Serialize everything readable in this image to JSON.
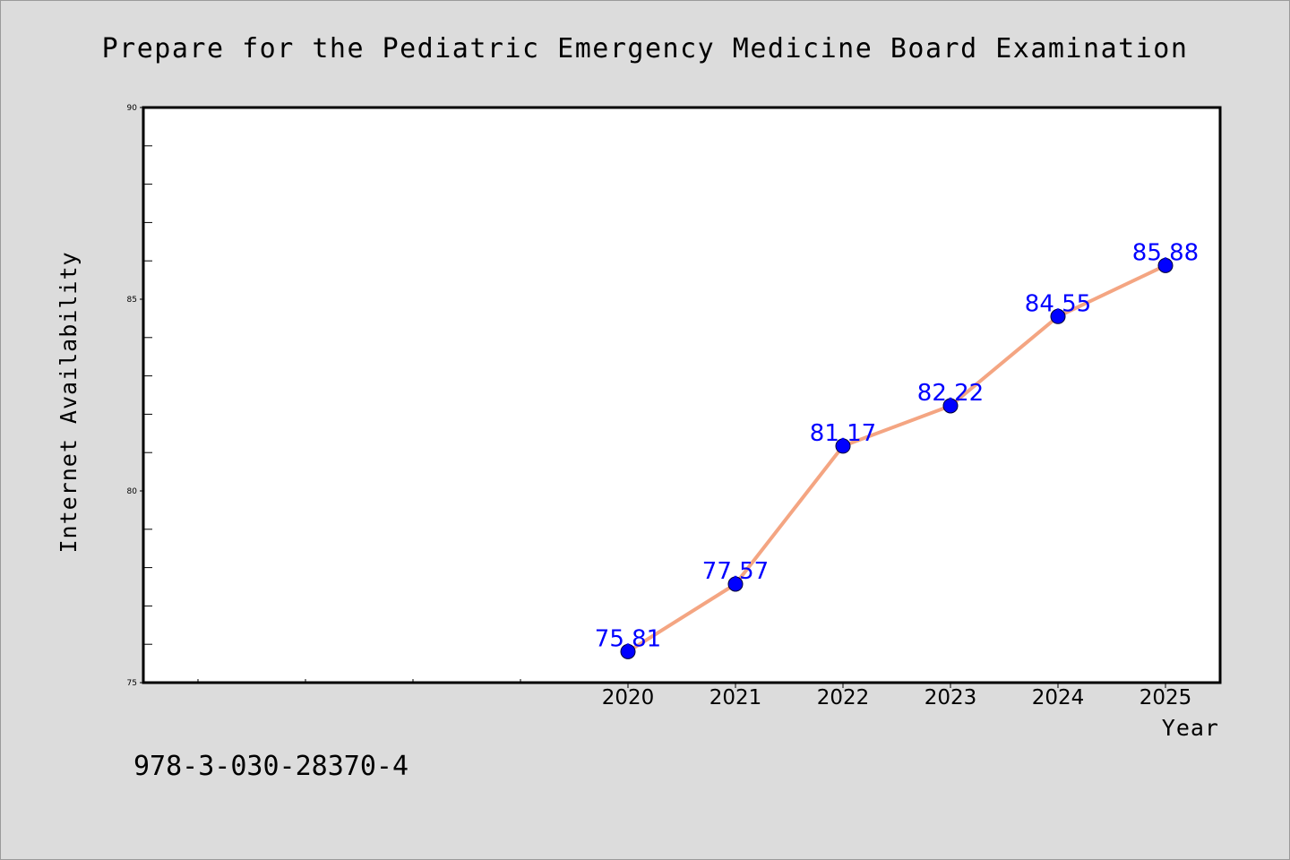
{
  "chart_data": {
    "type": "line",
    "title": "Prepare for the Pediatric Emergency Medicine Board Examination",
    "xlabel": "Year",
    "ylabel": "Internet Availability",
    "x": [
      "2020",
      "2021",
      "2022",
      "2023",
      "2024",
      "2025"
    ],
    "series": [
      {
        "values": [
          75.81,
          77.57,
          81.17,
          82.22,
          84.55,
          85.88
        ],
        "data_labels": [
          "75.81",
          "77.57",
          "81.17",
          "82.22",
          "84.55",
          "85.88"
        ]
      }
    ],
    "ylim": [
      75,
      90
    ],
    "y_ticks": [
      "75",
      "80",
      "85",
      "90"
    ],
    "grid": false,
    "line_color": "#f4a582",
    "marker_color": "#0000ff",
    "label_color": "#0000ff"
  },
  "footer": {
    "isbn": "978-3-030-28370-4"
  }
}
